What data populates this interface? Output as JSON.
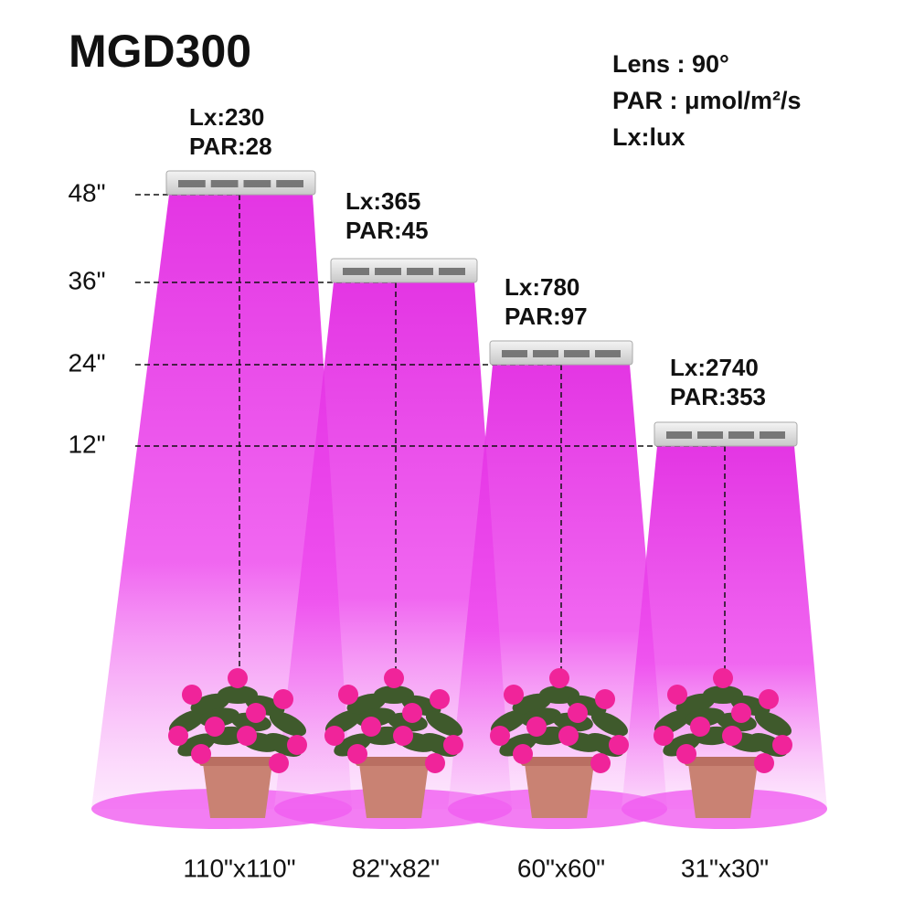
{
  "title": "MGD300",
  "legend": [
    "Lens : 90°",
    "PAR : μmol/m²/s",
    "Lx:lux"
  ],
  "heights": [
    "48\"",
    "36\"",
    "24\"",
    "12\""
  ],
  "lamps": [
    {
      "lx": "Lx:230",
      "par": "PAR:28",
      "coverage": "110\"x110\""
    },
    {
      "lx": "Lx:365",
      "par": "PAR:45",
      "coverage": "82\"x82\""
    },
    {
      "lx": "Lx:780",
      "par": "PAR:97",
      "coverage": "60\"x60\""
    },
    {
      "lx": "Lx:2740",
      "par": "PAR:353",
      "coverage": "31\"x30\""
    }
  ]
}
